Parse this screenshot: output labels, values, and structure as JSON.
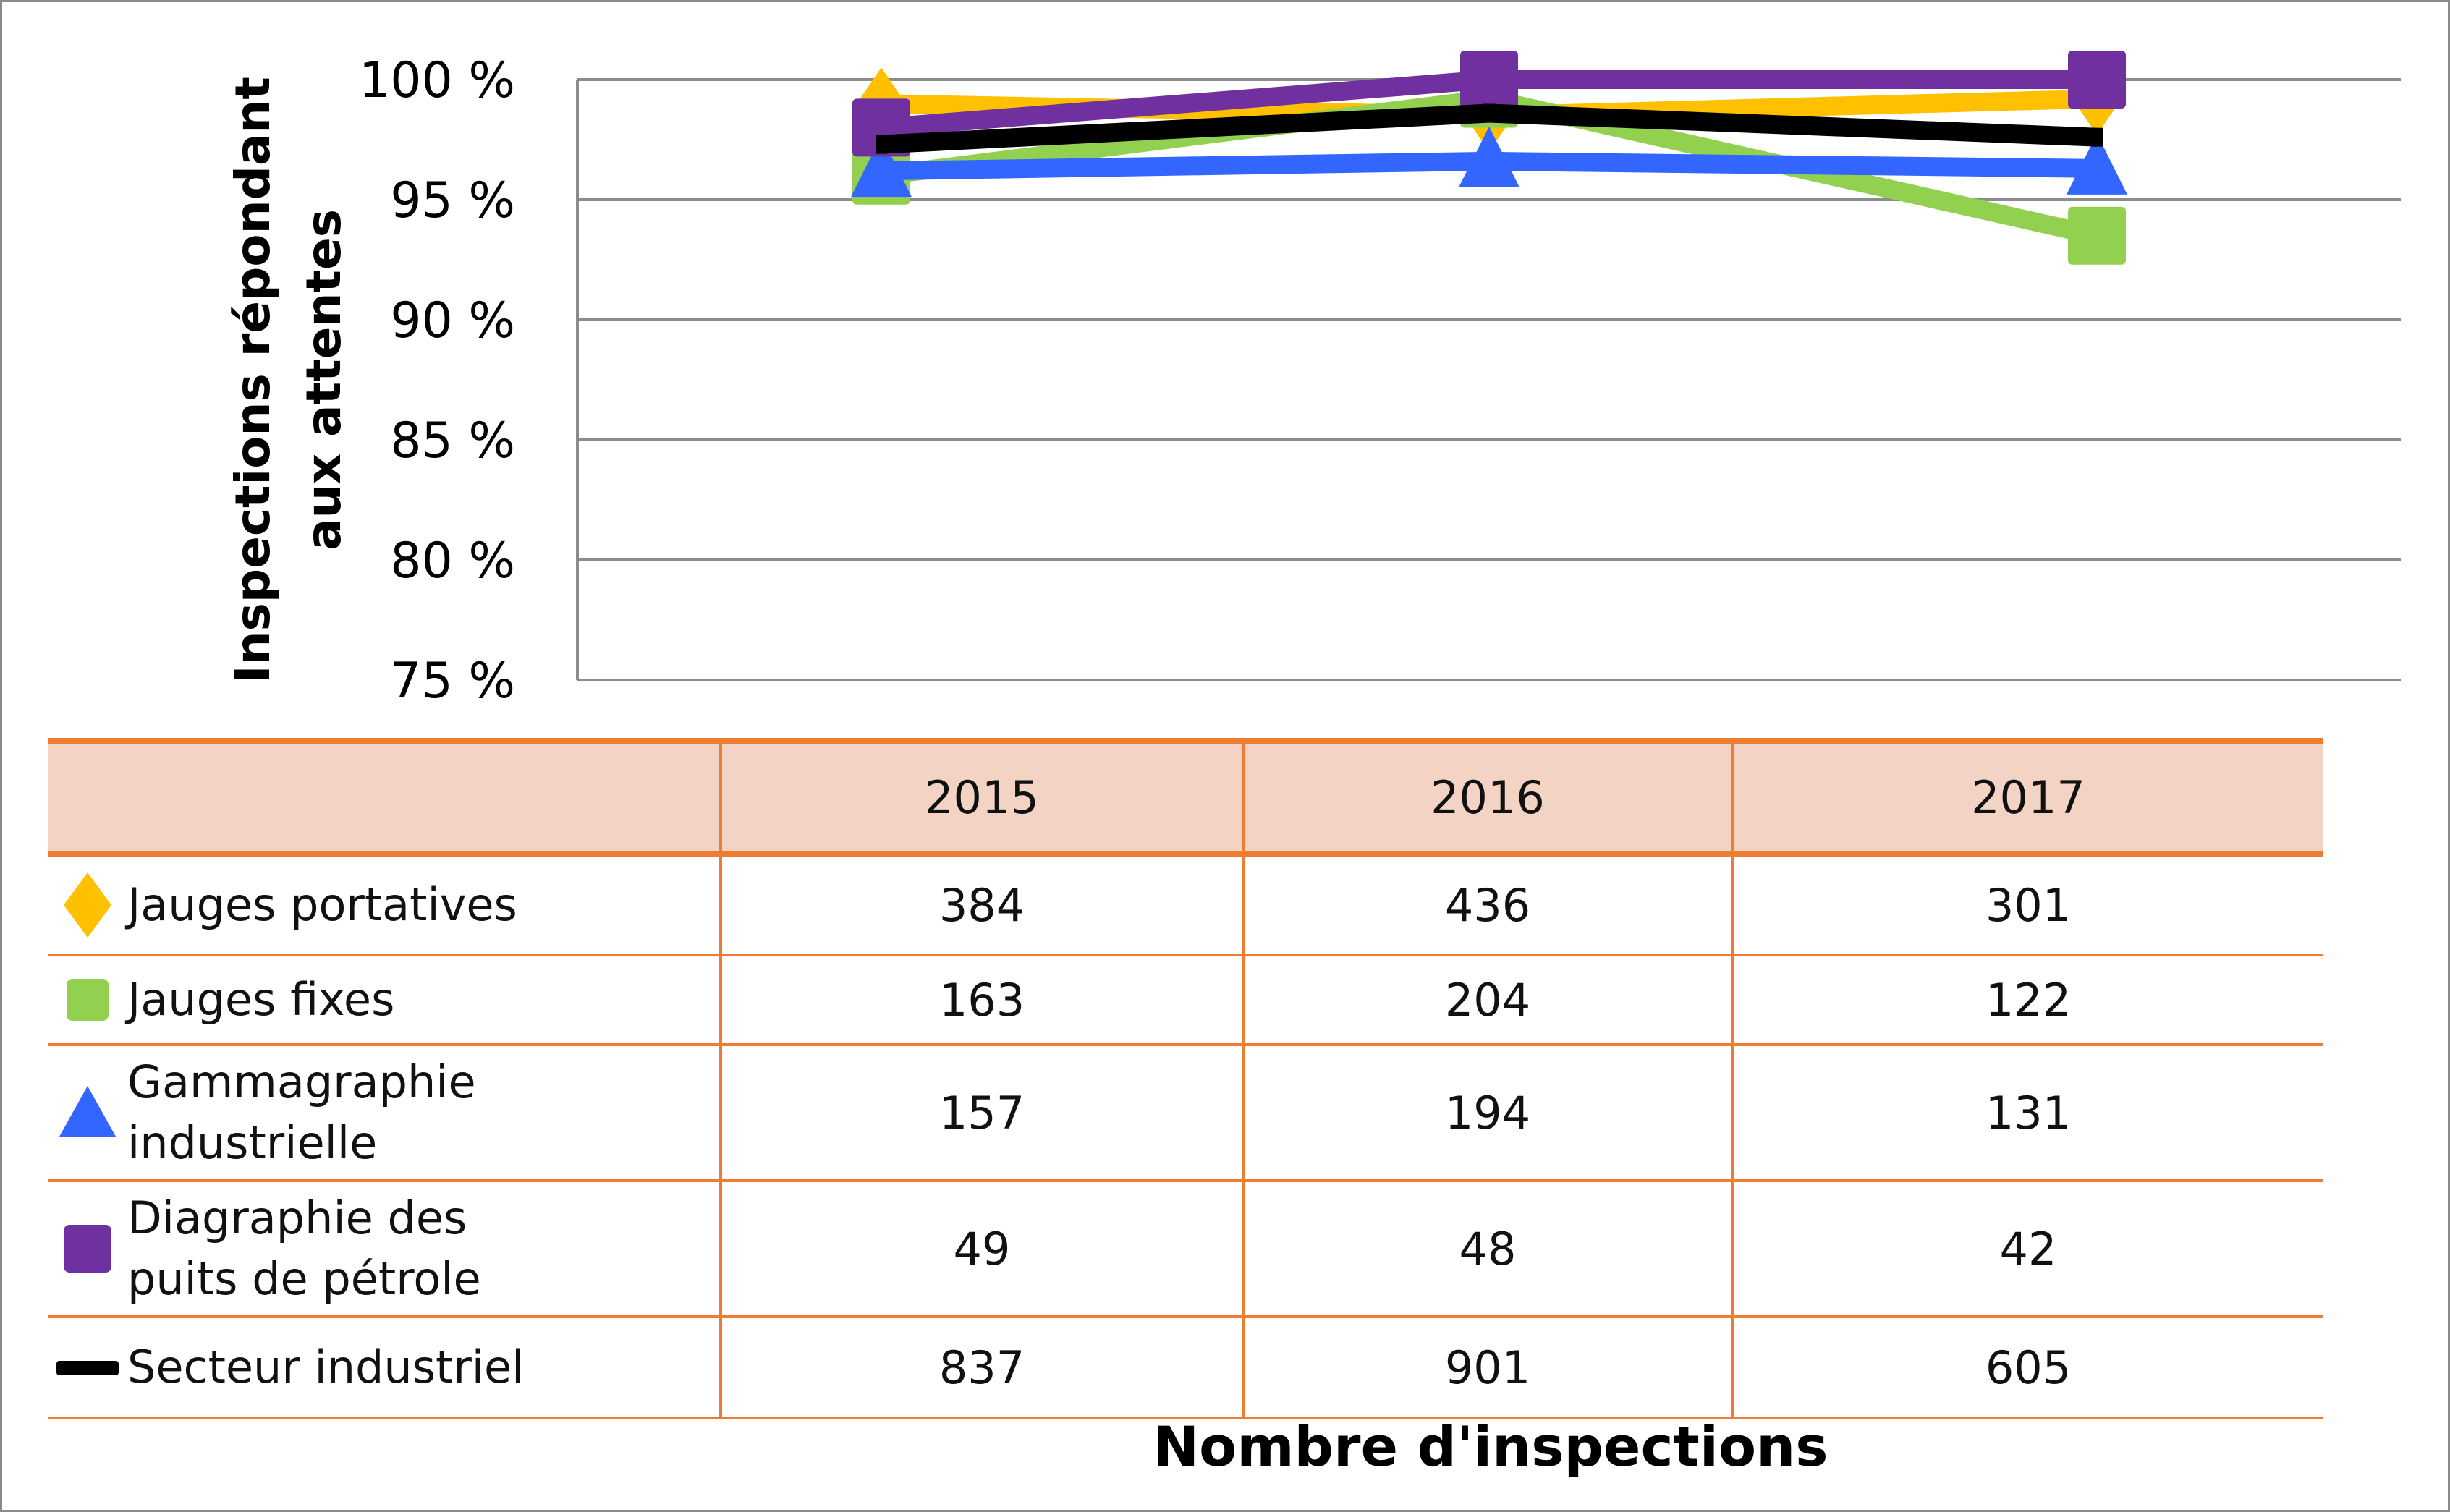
{
  "chart_data": {
    "type": "line",
    "x": [
      "2015",
      "2016",
      "2017"
    ],
    "ylabel": "Inspections répondant aux attentes",
    "ylabel_lines": [
      "Inspections répondant",
      "aux attentes"
    ],
    "yticks": [
      "100 %",
      "95 %",
      "90 %",
      "85 %",
      "80 %",
      "75 %"
    ],
    "ylim": [
      75,
      100
    ],
    "grid": true,
    "series": [
      {
        "name": "Jauges portatives",
        "values": [
          99.0,
          98.5,
          99.2
        ],
        "color": "#ffc000",
        "marker": "diamond"
      },
      {
        "name": "Jauges fixes",
        "values": [
          96.0,
          99.2,
          93.5
        ],
        "color": "#92d050",
        "marker": "square"
      },
      {
        "name": "Gammagraphie industrielle",
        "values": [
          96.2,
          96.6,
          96.3
        ],
        "color": "#3366ff",
        "marker": "triangle"
      },
      {
        "name": "Diagraphie des puits de pétrole",
        "values": [
          98.0,
          100.0,
          100.0
        ],
        "color": "#7030a0",
        "marker": "square"
      },
      {
        "name": "Secteur industriel",
        "values": [
          97.3,
          98.6,
          97.6
        ],
        "color": "#000000",
        "marker": "dash"
      }
    ]
  },
  "table": {
    "header": [
      "",
      "2015",
      "2016",
      "2017"
    ],
    "rows": [
      {
        "label_lines": [
          "Jauges portatives"
        ],
        "values": [
          "384",
          "436",
          "301"
        ],
        "marker": "diamond",
        "color": "#ffc000"
      },
      {
        "label_lines": [
          "Jauges fixes"
        ],
        "values": [
          "163",
          "204",
          "122"
        ],
        "marker": "square-small",
        "color": "#92d050"
      },
      {
        "label_lines": [
          "Gammagraphie",
          "industrielle"
        ],
        "values": [
          "157",
          "194",
          "131"
        ],
        "marker": "triangle",
        "color": "#3366ff"
      },
      {
        "label_lines": [
          "Diagraphie des",
          "puits de pétrole"
        ],
        "values": [
          "49",
          "48",
          "42"
        ],
        "marker": "square",
        "color": "#7030a0"
      },
      {
        "label_lines": [
          "Secteur industriel"
        ],
        "values": [
          "837",
          "901",
          "605"
        ],
        "marker": "dash",
        "color": "#000000"
      }
    ]
  },
  "x_title": "Nombre d'inspections"
}
